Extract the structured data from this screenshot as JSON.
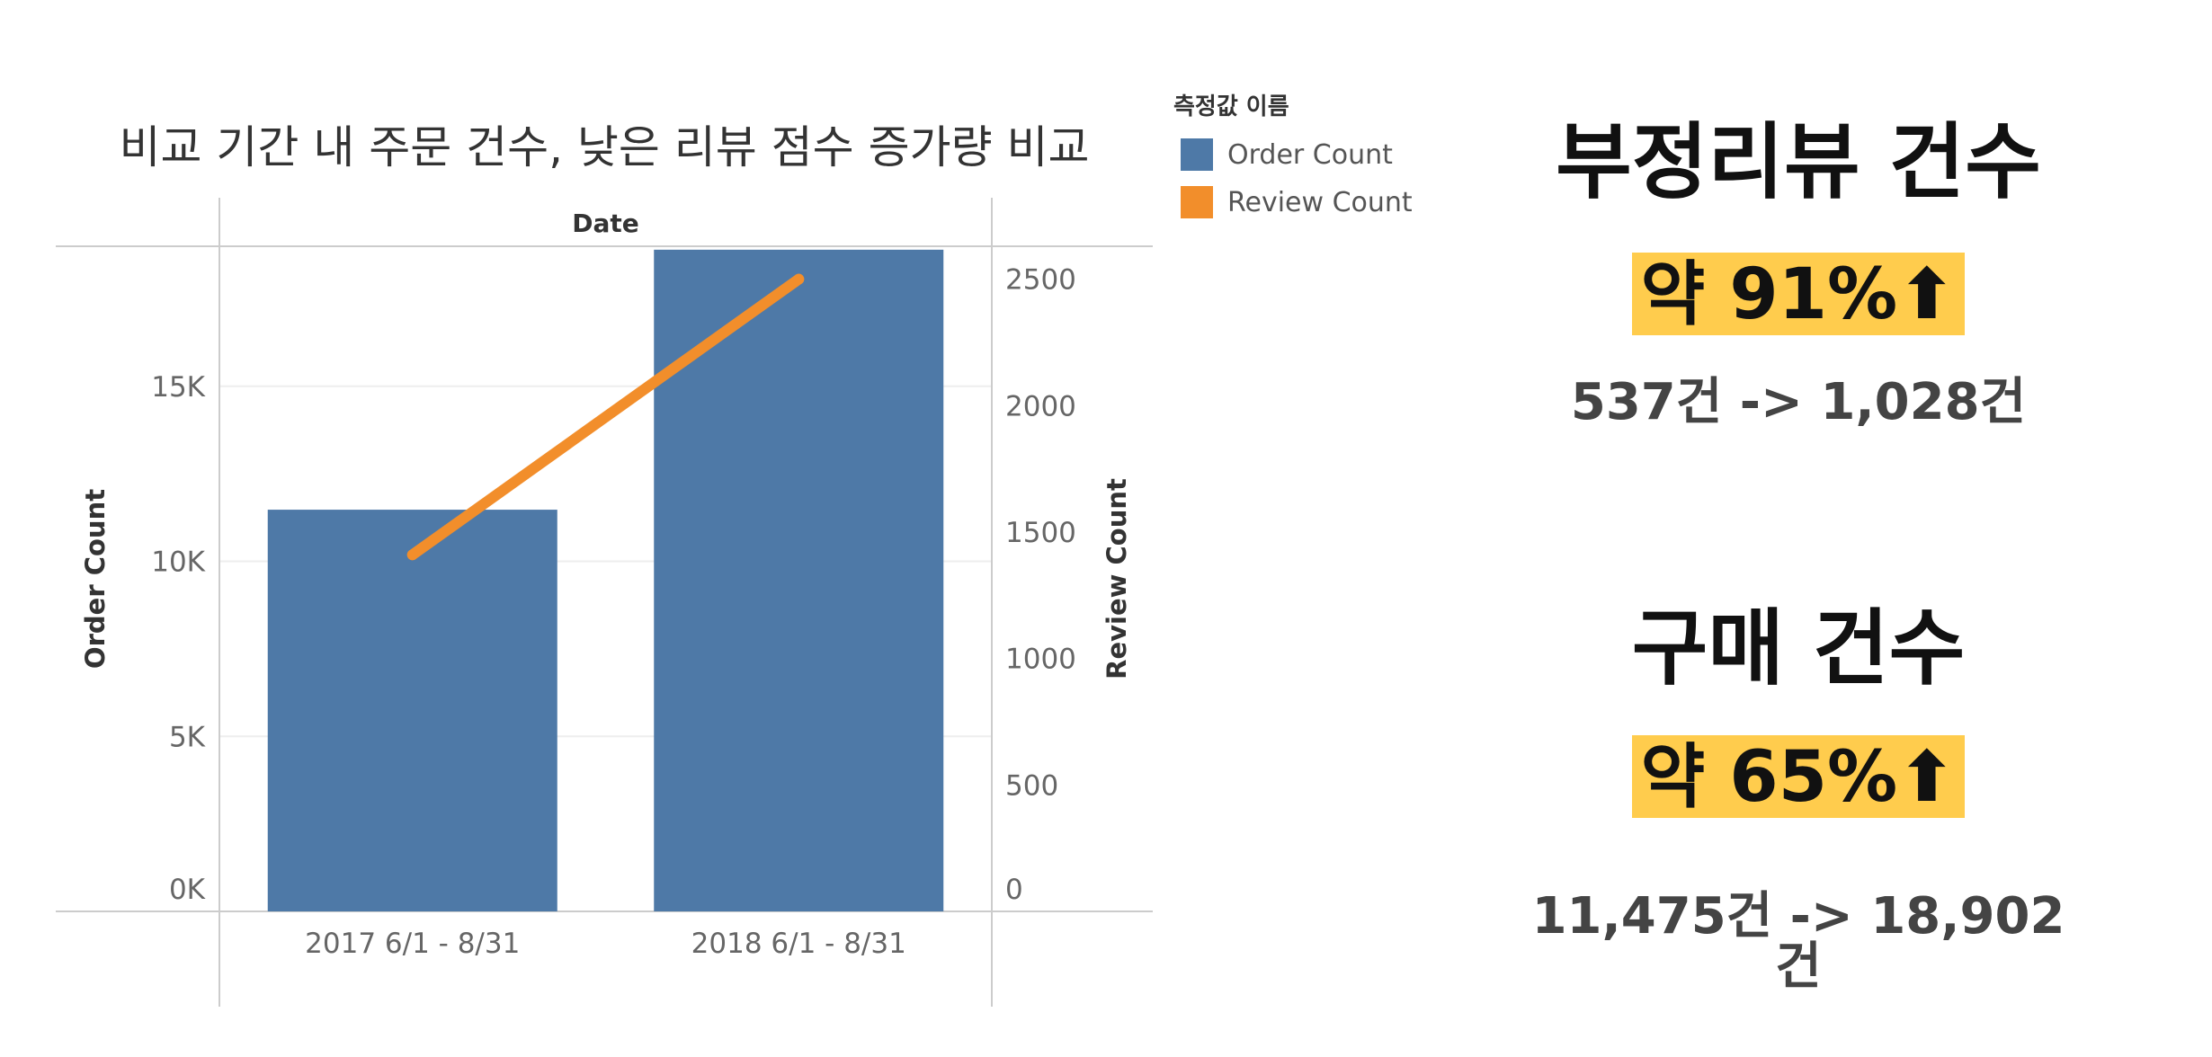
{
  "chart_data": {
    "type": "bar+line",
    "title": "비교 기간 내 주문 건수, 낮은 리뷰 점수 증가량 비교",
    "column_header": "Date",
    "categories": [
      "2017 6/1 - 8/31",
      "2018 6/1 - 8/31"
    ],
    "series": [
      {
        "name": "Order Count",
        "type": "bar",
        "axis": "left",
        "values": [
          11475,
          18902
        ],
        "color": "#4e79a7"
      },
      {
        "name": "Review Count",
        "type": "line",
        "axis": "right",
        "values": [
          1410,
          2500
        ],
        "color": "#f28e2b"
      }
    ],
    "y_left": {
      "label": "Order Count",
      "ticks": [
        "0K",
        "5K",
        "10K",
        "15K"
      ],
      "tick_values": [
        0,
        5000,
        10000,
        15000
      ],
      "ylim": [
        0,
        19000
      ]
    },
    "y_right": {
      "label": "Review Count",
      "ticks": [
        "0",
        "500",
        "1000",
        "1500",
        "2000",
        "2500"
      ],
      "tick_values": [
        0,
        500,
        1000,
        1500,
        2000,
        2500
      ],
      "ylim": [
        0,
        2630
      ]
    },
    "legend": {
      "title": "측정값 이름",
      "placement": "right-top",
      "items": [
        "Order Count",
        "Review Count"
      ]
    },
    "grid": true
  },
  "panel": {
    "fake_review": {
      "title": "부정리뷰 건수",
      "change": "약 91%⬆",
      "detail": "537건 -> 1,028건"
    },
    "purchase": {
      "title": "구매 건수",
      "change": "약 65%⬆",
      "detail": "11,475건 -> 18,902건"
    }
  },
  "colors": {
    "bar": "#4e79a7",
    "line": "#f28e2b",
    "highlight": "#ffcc4d"
  }
}
